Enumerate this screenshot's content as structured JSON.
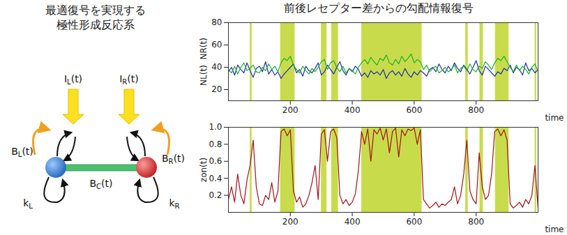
{
  "diagram": {
    "title": [
      "最適復号を実現する",
      "極性形成反応系"
    ],
    "labels": {
      "IL": "IL(t)",
      "IR": "IR(t)",
      "BL": "BL(t)",
      "BR": "BR(t)",
      "BC": "BC(t)",
      "kL": "kL",
      "kR": "kR"
    }
  },
  "heading": "前後レセプター差からの勾配情報復号",
  "chart_data": [
    {
      "type": "line",
      "ylabel": "NL(t)  NR(t)",
      "xlabel": "time",
      "x": [
        0,
        10,
        20,
        30,
        40,
        50,
        60,
        70,
        80,
        90,
        100,
        110,
        120,
        130,
        140,
        150,
        160,
        170,
        180,
        190,
        200,
        210,
        220,
        230,
        240,
        250,
        260,
        270,
        280,
        290,
        300,
        310,
        320,
        330,
        340,
        350,
        360,
        370,
        380,
        390,
        400,
        410,
        420,
        430,
        440,
        450,
        460,
        470,
        480,
        490,
        500,
        510,
        520,
        530,
        540,
        550,
        560,
        570,
        580,
        590,
        600,
        610,
        620,
        630,
        640,
        650,
        660,
        670,
        680,
        690,
        700,
        710,
        720,
        730,
        740,
        750,
        760,
        770,
        780,
        790,
        800,
        810,
        820,
        830,
        840,
        850,
        860,
        870,
        880,
        890,
        900,
        910,
        920,
        930,
        940,
        950,
        960,
        970,
        980,
        990,
        1000
      ],
      "xlim": [
        0,
        1000
      ],
      "xticks": [
        200,
        400,
        600,
        800
      ],
      "ylim": [
        10,
        80
      ],
      "yticks": [
        20,
        40,
        60,
        80
      ],
      "bands": {
        "color": "#c8dc4b",
        "intervals": [
          [
            70,
            76
          ],
          [
            168,
            215
          ],
          [
            300,
            318
          ],
          [
            333,
            355
          ],
          [
            430,
            625
          ],
          [
            766,
            774
          ],
          [
            812,
            823
          ],
          [
            862,
            906
          ],
          [
            990,
            995
          ]
        ]
      },
      "series": [
        {
          "color": "#1f2fb0",
          "values": [
            36,
            40,
            33,
            42,
            38,
            35,
            44,
            37,
            31,
            39,
            41,
            36,
            45,
            34,
            38,
            33,
            36,
            30,
            34,
            37,
            40,
            43,
            35,
            38,
            32,
            41,
            37,
            35,
            39,
            44,
            33,
            36,
            42,
            38,
            34,
            40,
            45,
            37,
            33,
            39,
            36,
            41,
            38,
            32,
            35,
            31,
            37,
            34,
            36,
            33,
            38,
            30,
            35,
            37,
            33,
            36,
            32,
            39,
            34,
            31,
            36,
            33,
            37,
            35,
            32,
            38,
            40,
            36,
            43,
            38,
            35,
            41,
            37,
            44,
            39,
            36,
            42,
            38,
            34,
            40,
            46,
            37,
            33,
            41,
            38,
            35,
            32,
            36,
            34,
            39,
            37,
            42,
            35,
            40,
            38,
            33,
            44,
            37,
            39,
            35,
            38
          ]
        },
        {
          "color": "#1fae2a",
          "values": [
            38,
            35,
            41,
            34,
            40,
            44,
            37,
            39,
            42,
            36,
            35,
            40,
            37,
            43,
            38,
            41,
            36,
            44,
            48,
            46,
            50,
            42,
            38,
            35,
            41,
            37,
            34,
            39,
            36,
            40,
            45,
            47,
            38,
            44,
            46,
            40,
            36,
            41,
            35,
            39,
            37,
            34,
            40,
            44,
            47,
            43,
            49,
            45,
            42,
            48,
            46,
            51,
            44,
            42,
            47,
            43,
            50,
            45,
            48,
            52,
            44,
            47,
            45,
            38,
            42,
            36,
            39,
            41,
            35,
            37,
            40,
            36,
            38,
            42,
            35,
            39,
            41,
            37,
            43,
            38,
            36,
            41,
            39,
            45,
            42,
            38,
            44,
            48,
            46,
            50,
            45,
            40,
            36,
            42,
            37,
            41,
            38,
            34,
            40,
            43,
            36
          ]
        }
      ]
    },
    {
      "type": "line",
      "ylabel": "zon(t)",
      "xlabel": "time",
      "x": [
        0,
        10,
        20,
        30,
        40,
        50,
        60,
        70,
        80,
        90,
        100,
        110,
        120,
        130,
        140,
        150,
        160,
        170,
        180,
        190,
        200,
        210,
        220,
        230,
        240,
        250,
        260,
        270,
        280,
        290,
        300,
        310,
        320,
        330,
        340,
        350,
        360,
        370,
        380,
        390,
        400,
        410,
        420,
        430,
        440,
        450,
        460,
        470,
        480,
        490,
        500,
        510,
        520,
        530,
        540,
        550,
        560,
        570,
        580,
        590,
        600,
        610,
        620,
        630,
        640,
        650,
        660,
        670,
        680,
        690,
        700,
        710,
        720,
        730,
        740,
        750,
        760,
        770,
        780,
        790,
        800,
        810,
        820,
        830,
        840,
        850,
        860,
        870,
        880,
        890,
        900,
        910,
        920,
        930,
        940,
        950,
        960,
        970,
        980,
        990,
        1000
      ],
      "xlim": [
        0,
        1000
      ],
      "xticks": [
        200,
        400,
        600,
        800
      ],
      "ylim": [
        0,
        1
      ],
      "yticks": [
        0.2,
        0.4,
        0.6,
        0.8,
        {
          "value": 1,
          "label": "1.0"
        }
      ],
      "bands": {
        "color": "#c8dc4b",
        "intervals": [
          [
            70,
            76
          ],
          [
            168,
            215
          ],
          [
            300,
            318
          ],
          [
            333,
            355
          ],
          [
            430,
            625
          ],
          [
            766,
            774
          ],
          [
            812,
            823
          ],
          [
            862,
            906
          ],
          [
            990,
            995
          ]
        ]
      },
      "series": [
        {
          "color": "#a0141a",
          "values": [
            0.15,
            0.3,
            0.12,
            0.45,
            0.2,
            0.1,
            0.38,
            0.55,
            0.85,
            0.3,
            0.1,
            0.08,
            0.2,
            0.15,
            0.35,
            0.12,
            0.25,
            0.95,
            0.98,
            0.9,
            0.97,
            0.25,
            0.12,
            0.18,
            0.06,
            0.1,
            0.2,
            0.35,
            0.55,
            0.15,
            0.92,
            0.97,
            0.6,
            0.95,
            0.98,
            0.88,
            0.2,
            0.1,
            0.15,
            0.08,
            0.12,
            0.22,
            0.5,
            0.95,
            0.8,
            0.98,
            0.6,
            0.97,
            0.92,
            0.99,
            0.85,
            0.98,
            0.7,
            0.95,
            0.99,
            0.65,
            0.97,
            0.9,
            0.98,
            0.96,
            0.99,
            0.8,
            0.97,
            0.15,
            0.1,
            0.05,
            0.08,
            0.12,
            0.06,
            0.1,
            0.08,
            0.12,
            0.15,
            0.3,
            0.1,
            0.2,
            0.45,
            0.85,
            0.25,
            0.15,
            0.1,
            0.7,
            0.3,
            0.15,
            0.2,
            0.45,
            0.95,
            0.98,
            0.9,
            0.97,
            0.85,
            0.1,
            0.05,
            0.08,
            0.12,
            0.06,
            0.15,
            0.1,
            0.2,
            0.55,
            0.05
          ]
        }
      ]
    }
  ]
}
